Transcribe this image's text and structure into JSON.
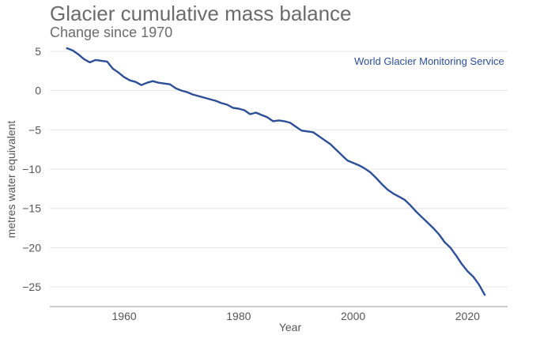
{
  "chart_data": {
    "type": "line",
    "title": "Glacier cumulative mass balance",
    "subtitle": "Change since 1970",
    "xlabel": "Year",
    "ylabel": "metres water equivalent",
    "annotation": "World Glacier Monitoring Service",
    "xlim": [
      1947,
      2027
    ],
    "ylim": [
      -27.5,
      6
    ],
    "xticks": [
      1960,
      1980,
      2000,
      2020
    ],
    "yticks": [
      5,
      0,
      -5,
      -10,
      -15,
      -20,
      -25
    ],
    "ytick_labels": [
      "5",
      "0",
      "−5",
      "−10",
      "−15",
      "−20",
      "−25"
    ],
    "grid": "horizontal",
    "series": [
      {
        "color": "#2c4f97",
        "x": [
          1950,
          1951,
          1952,
          1953,
          1954,
          1955,
          1956,
          1957,
          1958,
          1959,
          1960,
          1961,
          1962,
          1963,
          1964,
          1965,
          1966,
          1967,
          1968,
          1969,
          1970,
          1971,
          1972,
          1973,
          1974,
          1975,
          1976,
          1977,
          1978,
          1979,
          1980,
          1981,
          1982,
          1983,
          1984,
          1985,
          1986,
          1987,
          1988,
          1989,
          1990,
          1991,
          1992,
          1993,
          1994,
          1995,
          1996,
          1997,
          1998,
          1999,
          2000,
          2001,
          2002,
          2003,
          2004,
          2005,
          2006,
          2007,
          2008,
          2009,
          2010,
          2011,
          2012,
          2013,
          2014,
          2015,
          2016,
          2017,
          2018,
          2019,
          2020,
          2021,
          2022,
          2023
        ],
        "y": [
          5.4,
          5.1,
          4.6,
          4.0,
          3.6,
          3.9,
          3.8,
          3.7,
          2.8,
          2.3,
          1.7,
          1.3,
          1.1,
          0.7,
          1.0,
          1.2,
          1.0,
          0.9,
          0.8,
          0.3,
          0.0,
          -0.2,
          -0.5,
          -0.7,
          -0.9,
          -1.1,
          -1.3,
          -1.6,
          -1.8,
          -2.2,
          -2.3,
          -2.5,
          -3.0,
          -2.8,
          -3.1,
          -3.4,
          -3.9,
          -3.8,
          -3.9,
          -4.1,
          -4.6,
          -5.1,
          -5.2,
          -5.3,
          -5.8,
          -6.3,
          -6.8,
          -7.5,
          -8.2,
          -8.9,
          -9.2,
          -9.5,
          -9.9,
          -10.4,
          -11.1,
          -11.9,
          -12.6,
          -13.1,
          -13.5,
          -13.9,
          -14.6,
          -15.4,
          -16.1,
          -16.8,
          -17.5,
          -18.3,
          -19.3,
          -20.0,
          -21.0,
          -22.1,
          -23.0,
          -23.7,
          -24.7,
          -26.0
        ]
      }
    ]
  }
}
